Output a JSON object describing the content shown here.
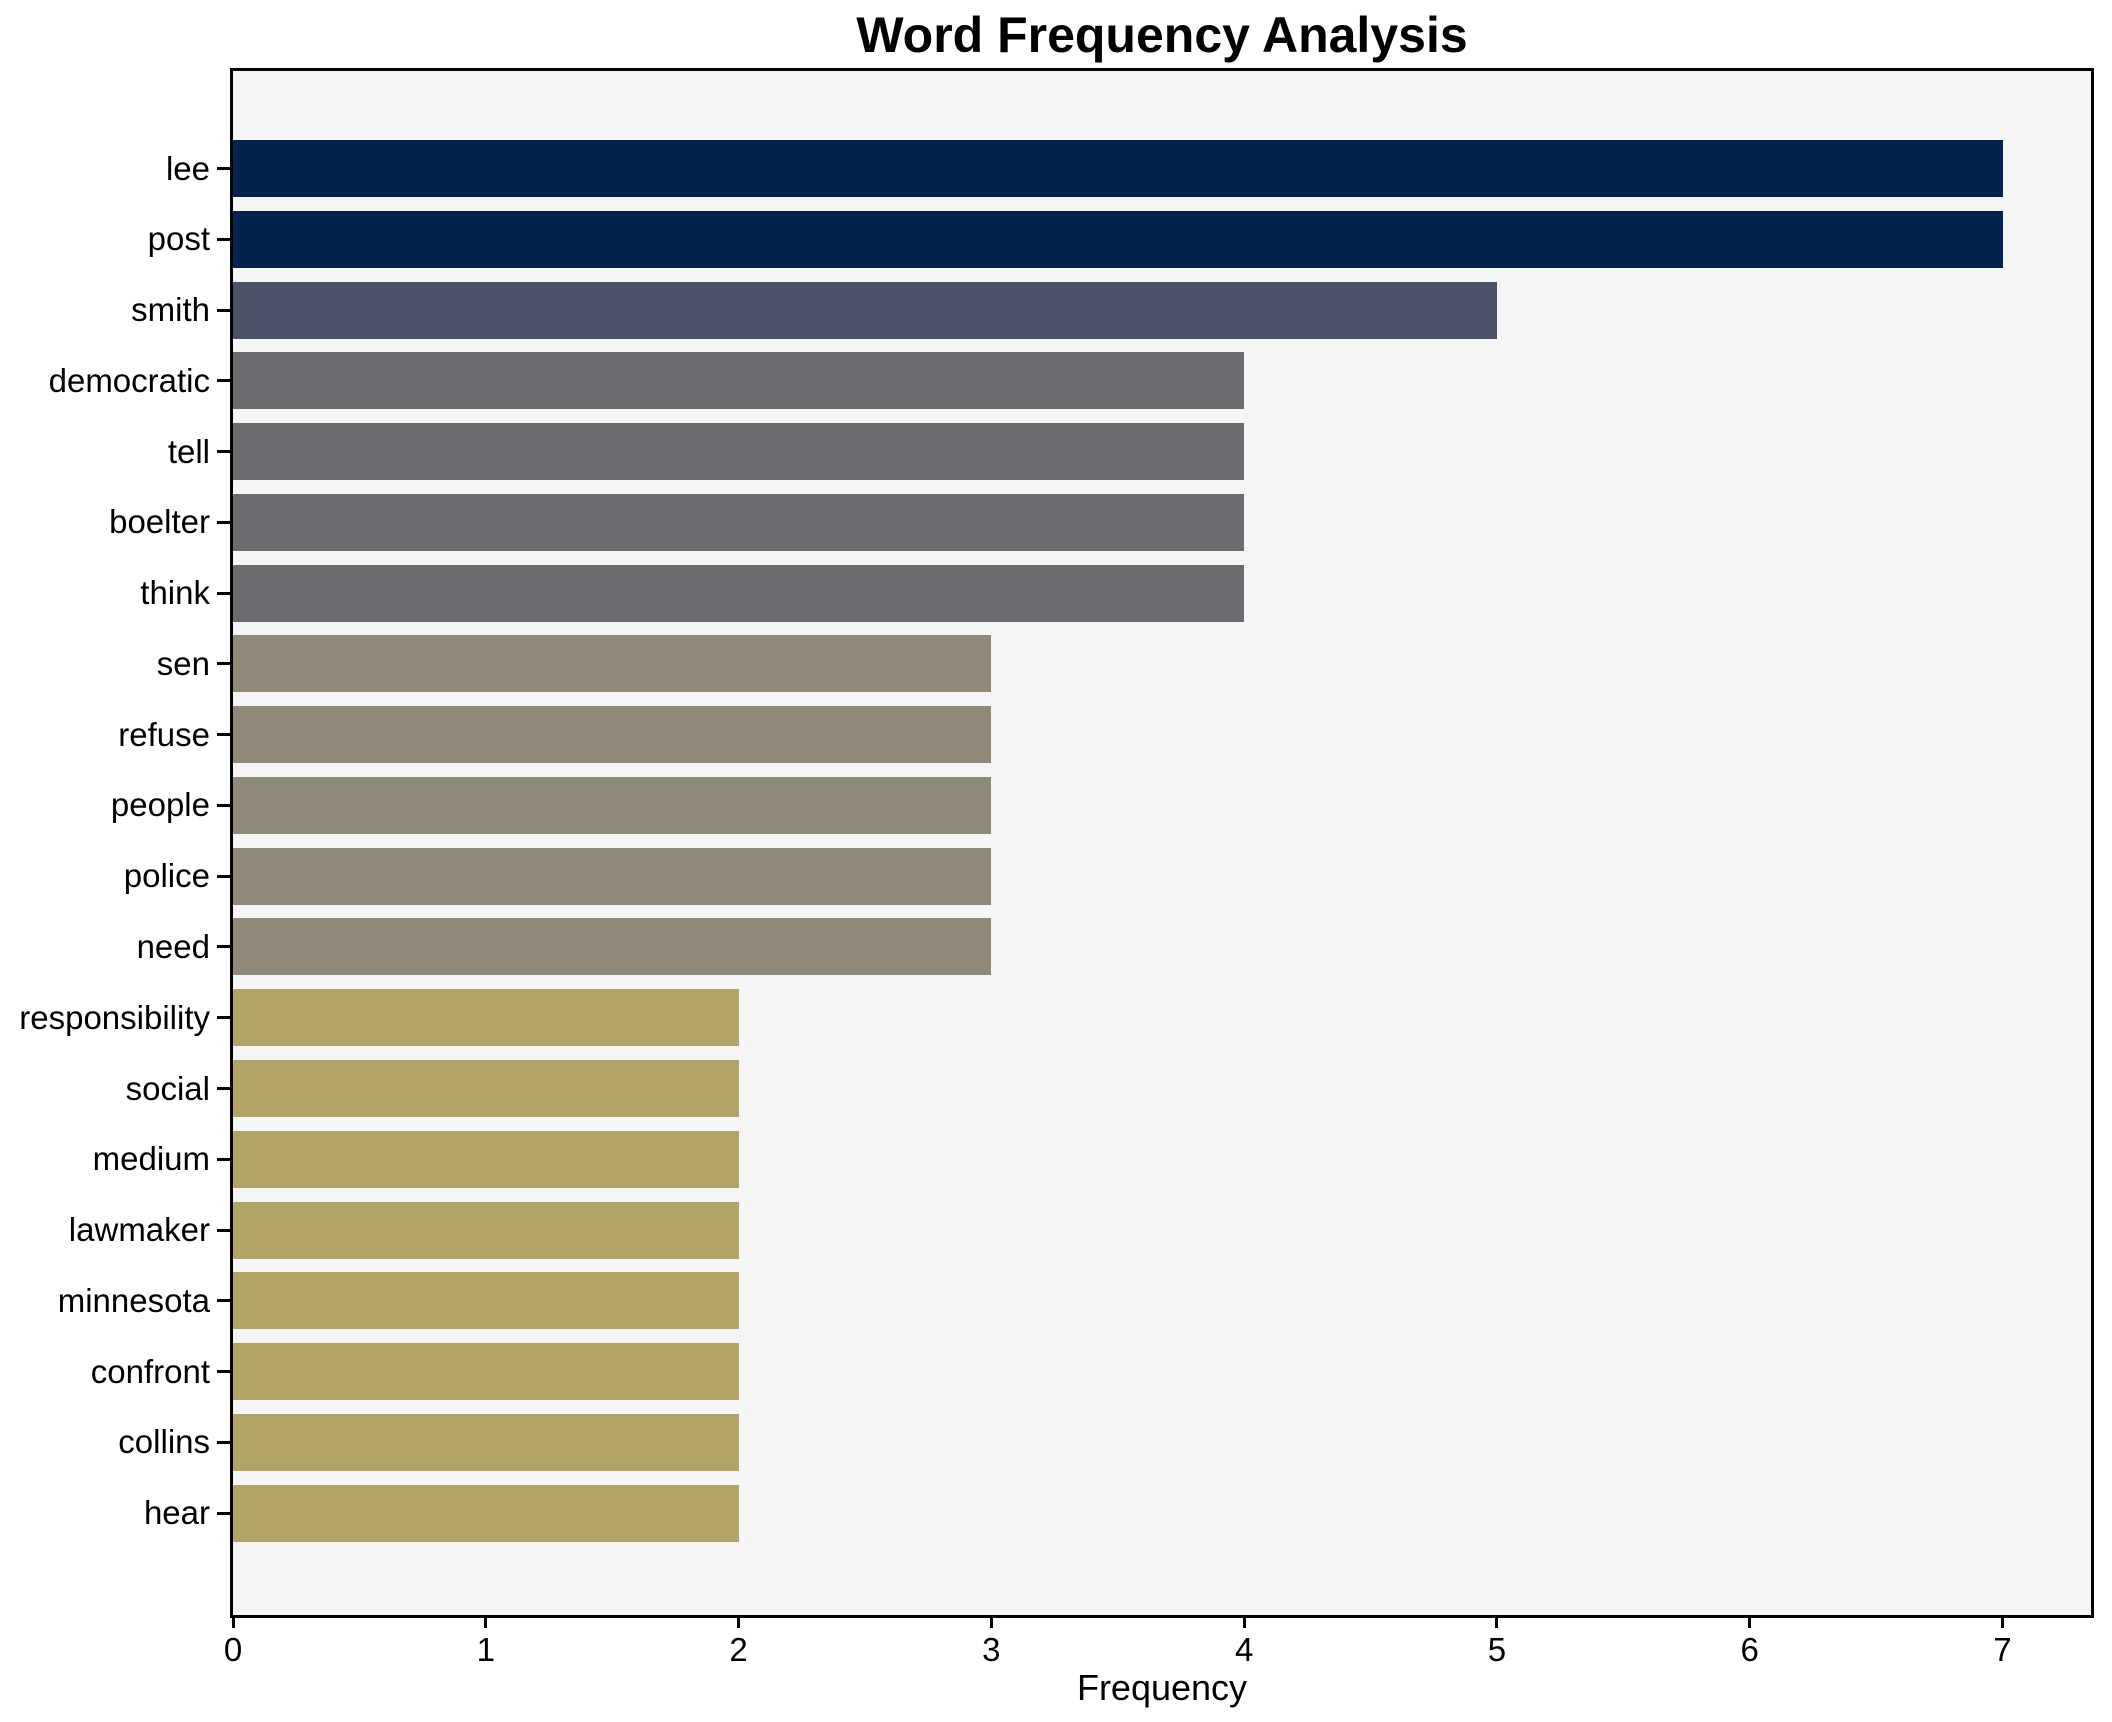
{
  "chart_data": {
    "type": "bar",
    "orientation": "horizontal",
    "title": "Word Frequency Analysis",
    "xlabel": "Frequency",
    "ylabel": "",
    "categories": [
      "lee",
      "post",
      "smith",
      "democratic",
      "tell",
      "boelter",
      "think",
      "sen",
      "refuse",
      "people",
      "police",
      "need",
      "responsibility",
      "social",
      "medium",
      "lawmaker",
      "minnesota",
      "confront",
      "collins",
      "hear"
    ],
    "values": [
      7,
      7,
      5,
      4,
      4,
      4,
      4,
      3,
      3,
      3,
      3,
      3,
      2,
      2,
      2,
      2,
      2,
      2,
      2,
      2
    ],
    "xticks": [
      0,
      1,
      2,
      3,
      4,
      5,
      6,
      7
    ],
    "xlim": [
      0,
      7.35
    ],
    "grid": false,
    "legend": null,
    "bar_colors": [
      "#02234b",
      "#02234b",
      "#4c5368",
      "#6c6c70",
      "#6c6c70",
      "#6c6c70",
      "#6c6c70",
      "#8e8978",
      "#8e8978",
      "#8e8978",
      "#8e8978",
      "#8e8978",
      "#b0a466",
      "#b0a466",
      "#b0a466",
      "#b0a466",
      "#b0a466",
      "#b0a466",
      "#b0a466",
      "#b0a466"
    ],
    "plot_background": "#f5f5f6",
    "figure_background": "#ffffff",
    "spine_color": "#000000"
  }
}
